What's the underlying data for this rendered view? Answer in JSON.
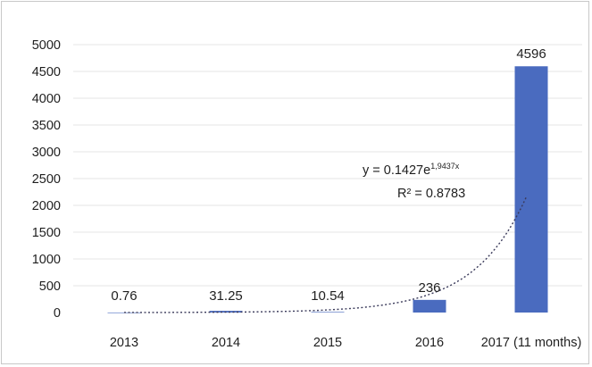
{
  "chart_data": {
    "type": "bar",
    "title": "",
    "xlabel": "",
    "ylabel": "",
    "categories": [
      "2013",
      "2014",
      "2015",
      "2016",
      "2017 (11 months)"
    ],
    "values": [
      0.76,
      31.25,
      10.54,
      236,
      4596
    ],
    "data_labels": [
      "0.76",
      "31.25",
      "10.54",
      "236",
      "4596"
    ],
    "ylim": [
      0,
      5000
    ],
    "yticks": [
      0,
      500,
      1000,
      1500,
      2000,
      2500,
      3000,
      3500,
      4000,
      4500,
      5000
    ],
    "grid": true,
    "legend": "none",
    "bar_color": "#4a6bbf",
    "trendline": {
      "type": "exponential",
      "a": 0.1427,
      "b": 1.9437,
      "equation_prefix": "y = 0.1427e",
      "equation_exponent": "1,9437x",
      "r_squared_label": "R² = 0.8783",
      "style": "dotted",
      "color": "#3a3a5a"
    }
  }
}
